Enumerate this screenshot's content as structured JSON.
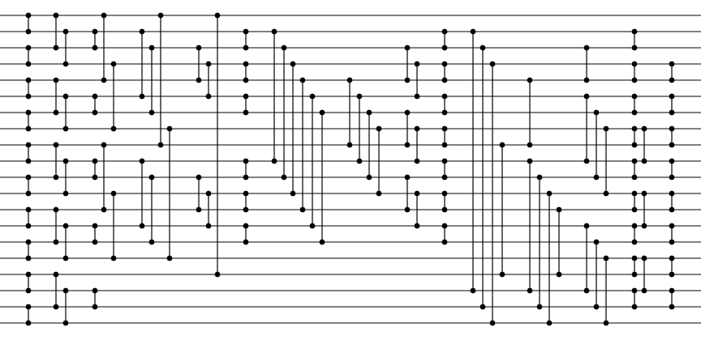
{
  "diagram": {
    "type": "sorting-network",
    "wire_count": 20,
    "comparators": [
      {
        "col": 35,
        "a": 0,
        "b": 1
      },
      {
        "col": 35,
        "a": 2,
        "b": 3
      },
      {
        "col": 35,
        "a": 4,
        "b": 5
      },
      {
        "col": 35,
        "a": 6,
        "b": 7
      },
      {
        "col": 35,
        "a": 8,
        "b": 9
      },
      {
        "col": 35,
        "a": 10,
        "b": 11
      },
      {
        "col": 35,
        "a": 12,
        "b": 13
      },
      {
        "col": 35,
        "a": 14,
        "b": 15
      },
      {
        "col": 35,
        "a": 16,
        "b": 17
      },
      {
        "col": 35,
        "a": 18,
        "b": 19
      },
      {
        "col": 69,
        "a": 0,
        "b": 2
      },
      {
        "col": 69,
        "a": 4,
        "b": 6
      },
      {
        "col": 69,
        "a": 8,
        "b": 10
      },
      {
        "col": 69,
        "a": 12,
        "b": 14
      },
      {
        "col": 69,
        "a": 16,
        "b": 18
      },
      {
        "col": 81,
        "a": 1,
        "b": 3
      },
      {
        "col": 81,
        "a": 5,
        "b": 7
      },
      {
        "col": 81,
        "a": 9,
        "b": 11
      },
      {
        "col": 81,
        "a": 13,
        "b": 15
      },
      {
        "col": 81,
        "a": 17,
        "b": 19
      },
      {
        "col": 117,
        "a": 1,
        "b": 2
      },
      {
        "col": 117,
        "a": 5,
        "b": 6
      },
      {
        "col": 117,
        "a": 9,
        "b": 10
      },
      {
        "col": 117,
        "a": 13,
        "b": 14
      },
      {
        "col": 117,
        "a": 17,
        "b": 18
      },
      {
        "col": 128,
        "a": 0,
        "b": 4
      },
      {
        "col": 128,
        "a": 8,
        "b": 12
      },
      {
        "col": 140,
        "a": 3,
        "b": 7
      },
      {
        "col": 140,
        "a": 11,
        "b": 15
      },
      {
        "col": 175,
        "a": 1,
        "b": 5
      },
      {
        "col": 175,
        "a": 9,
        "b": 13
      },
      {
        "col": 187,
        "a": 2,
        "b": 6
      },
      {
        "col": 187,
        "a": 10,
        "b": 14
      },
      {
        "col": 198,
        "a": 0,
        "b": 8
      },
      {
        "col": 209,
        "a": 7,
        "b": 15
      },
      {
        "col": 245,
        "a": 2,
        "b": 4
      },
      {
        "col": 245,
        "a": 10,
        "b": 12
      },
      {
        "col": 257,
        "a": 3,
        "b": 5
      },
      {
        "col": 257,
        "a": 11,
        "b": 13
      },
      {
        "col": 268,
        "a": 0,
        "b": 16
      },
      {
        "col": 303,
        "a": 1,
        "b": 2
      },
      {
        "col": 303,
        "a": 3,
        "b": 4
      },
      {
        "col": 303,
        "a": 5,
        "b": 6
      },
      {
        "col": 303,
        "a": 9,
        "b": 10
      },
      {
        "col": 303,
        "a": 11,
        "b": 12
      },
      {
        "col": 303,
        "a": 13,
        "b": 14
      },
      {
        "col": 338,
        "a": 1,
        "b": 9
      },
      {
        "col": 350,
        "a": 2,
        "b": 10
      },
      {
        "col": 361,
        "a": 3,
        "b": 11
      },
      {
        "col": 373,
        "a": 4,
        "b": 12
      },
      {
        "col": 385,
        "a": 5,
        "b": 13
      },
      {
        "col": 397,
        "a": 6,
        "b": 14
      },
      {
        "col": 431,
        "a": 4,
        "b": 8
      },
      {
        "col": 443,
        "a": 5,
        "b": 9
      },
      {
        "col": 455,
        "a": 6,
        "b": 10
      },
      {
        "col": 467,
        "a": 7,
        "b": 11
      },
      {
        "col": 502,
        "a": 2,
        "b": 4
      },
      {
        "col": 502,
        "a": 6,
        "b": 8
      },
      {
        "col": 502,
        "a": 10,
        "b": 12
      },
      {
        "col": 514,
        "a": 3,
        "b": 5
      },
      {
        "col": 514,
        "a": 7,
        "b": 9
      },
      {
        "col": 514,
        "a": 11,
        "b": 13
      },
      {
        "col": 548,
        "a": 1,
        "b": 2
      },
      {
        "col": 548,
        "a": 3,
        "b": 4
      },
      {
        "col": 548,
        "a": 5,
        "b": 6
      },
      {
        "col": 548,
        "a": 7,
        "b": 8
      },
      {
        "col": 548,
        "a": 9,
        "b": 10
      },
      {
        "col": 548,
        "a": 11,
        "b": 12
      },
      {
        "col": 548,
        "a": 13,
        "b": 14
      },
      {
        "col": 583,
        "a": 1,
        "b": 17
      },
      {
        "col": 595,
        "a": 2,
        "b": 18
      },
      {
        "col": 607,
        "a": 3,
        "b": 19
      },
      {
        "col": 619,
        "a": 8,
        "b": 16
      },
      {
        "col": 653,
        "a": 4,
        "b": 8
      },
      {
        "col": 653,
        "a": 9,
        "b": 17
      },
      {
        "col": 665,
        "a": 10,
        "b": 18
      },
      {
        "col": 677,
        "a": 11,
        "b": 19
      },
      {
        "col": 689,
        "a": 12,
        "b": 16
      },
      {
        "col": 723,
        "a": 2,
        "b": 4
      },
      {
        "col": 723,
        "a": 5,
        "b": 9
      },
      {
        "col": 723,
        "a": 13,
        "b": 17
      },
      {
        "col": 735,
        "a": 6,
        "b": 10
      },
      {
        "col": 735,
        "a": 14,
        "b": 18
      },
      {
        "col": 747,
        "a": 7,
        "b": 11
      },
      {
        "col": 747,
        "a": 15,
        "b": 19
      },
      {
        "col": 782,
        "a": 1,
        "b": 2
      },
      {
        "col": 782,
        "a": 3,
        "b": 4
      },
      {
        "col": 782,
        "a": 5,
        "b": 6
      },
      {
        "col": 782,
        "a": 7,
        "b": 8
      },
      {
        "col": 782,
        "a": 9,
        "b": 10
      },
      {
        "col": 782,
        "a": 11,
        "b": 12
      },
      {
        "col": 782,
        "a": 13,
        "b": 14
      },
      {
        "col": 782,
        "a": 15,
        "b": 16
      },
      {
        "col": 782,
        "a": 17,
        "b": 18
      },
      {
        "col": 794,
        "a": 7,
        "b": 9
      },
      {
        "col": 794,
        "a": 11,
        "b": 13
      },
      {
        "col": 794,
        "a": 15,
        "b": 17
      },
      {
        "col": 828,
        "a": 3,
        "b": 4
      },
      {
        "col": 828,
        "a": 5,
        "b": 6
      },
      {
        "col": 828,
        "a": 7,
        "b": 8
      },
      {
        "col": 828,
        "a": 9,
        "b": 10
      },
      {
        "col": 828,
        "a": 11,
        "b": 12
      },
      {
        "col": 828,
        "a": 13,
        "b": 14
      },
      {
        "col": 828,
        "a": 15,
        "b": 16
      },
      {
        "col": 828,
        "a": 17,
        "b": 18
      }
    ]
  }
}
